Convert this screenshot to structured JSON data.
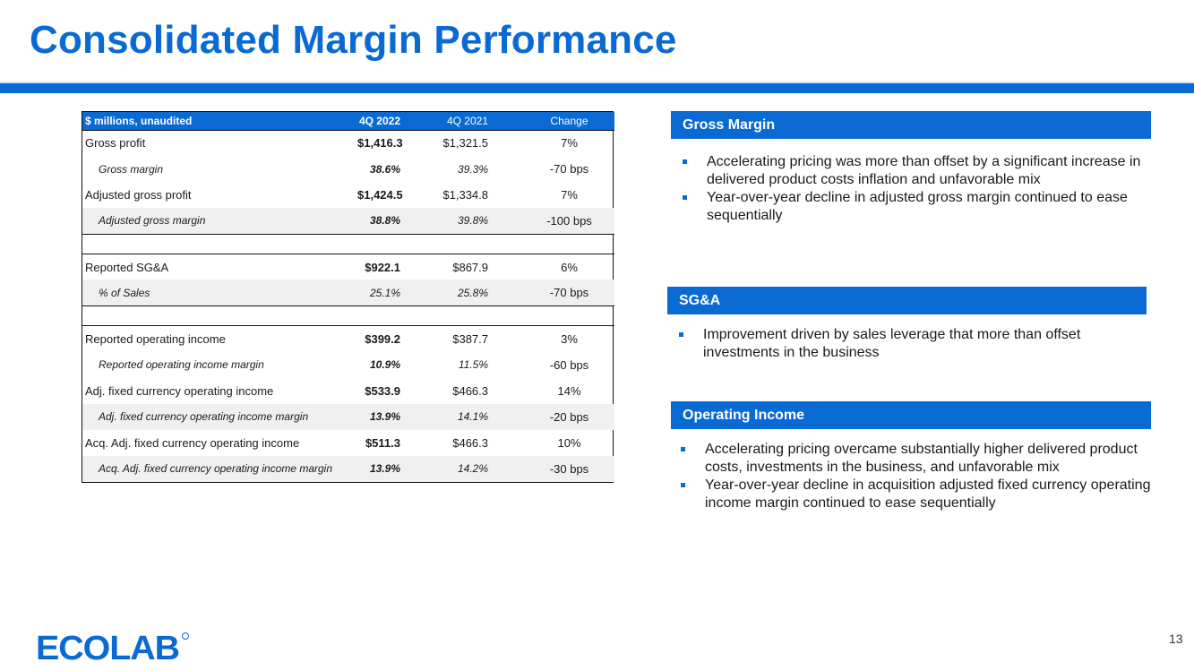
{
  "title": "Consolidated Margin Performance",
  "table": {
    "headers": [
      "$ millions, unaudited",
      "4Q 2022",
      "4Q 2021",
      "Change"
    ],
    "rows": [
      {
        "label": "Gross profit",
        "v2022": "$1,416.3",
        "v2021": "$1,321.5",
        "change": "7%"
      },
      {
        "label": "Gross margin",
        "v2022": "38.6%",
        "v2021": "39.3%",
        "change": "-70 bps"
      },
      {
        "label": "Adjusted gross profit",
        "v2022": "$1,424.5",
        "v2021": "$1,334.8",
        "change": "7%"
      },
      {
        "label": "Adjusted gross margin",
        "v2022": "38.8%",
        "v2021": "39.8%",
        "change": "-100 bps"
      },
      {
        "label": "Reported SG&A",
        "v2022": "$922.1",
        "v2021": "$867.9",
        "change": "6%"
      },
      {
        "label": "% of Sales",
        "v2022": "25.1%",
        "v2021": "25.8%",
        "change": "-70 bps"
      },
      {
        "label": "Reported operating income",
        "v2022": "$399.2",
        "v2021": "$387.7",
        "change": "3%"
      },
      {
        "label": "Reported operating income margin",
        "v2022": "10.9%",
        "v2021": "11.5%",
        "change": "-60 bps"
      },
      {
        "label": "Adj. fixed currency operating income",
        "v2022": "$533.9",
        "v2021": "$466.3",
        "change": "14%"
      },
      {
        "label": "Adj. fixed currency operating income margin",
        "v2022": "13.9%",
        "v2021": "14.1%",
        "change": "-20 bps"
      },
      {
        "label": "Acq. Adj. fixed currency operating income",
        "v2022": "$511.3",
        "v2021": "$466.3",
        "change": "10%"
      },
      {
        "label": "Acq. Adj. fixed currency operating income margin",
        "v2022": "13.9%",
        "v2021": "14.2%",
        "change": "-30 bps"
      }
    ]
  },
  "panels": {
    "gross_margin": {
      "heading": "Gross Margin",
      "bullets": [
        "Accelerating pricing was more than offset by a significant increase in delivered product costs inflation and unfavorable mix",
        "Year-over-year decline in adjusted gross margin continued to ease sequentially"
      ]
    },
    "sga": {
      "heading": "SG&A",
      "bullets": [
        "Improvement driven by sales leverage that more than offset investments in the business"
      ]
    },
    "operating_income": {
      "heading": "Operating Income",
      "bullets": [
        "Accelerating pricing overcame substantially higher delivered product costs, investments in the business, and unfavorable mix",
        "Year-over-year decline in acquisition adjusted fixed currency operating income margin continued to ease sequentially"
      ]
    }
  },
  "page_number": "13",
  "logo_text": "ECOLAB",
  "colors": {
    "brand_blue": "#0a6ad3",
    "shade": "#f0f0f0"
  }
}
